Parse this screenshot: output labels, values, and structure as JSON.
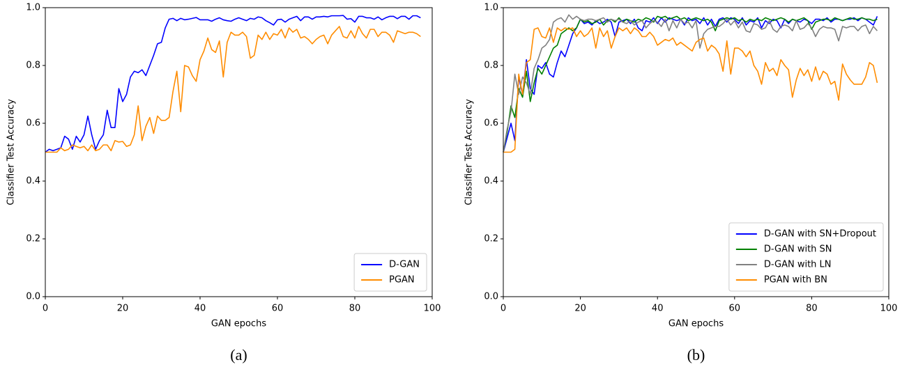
{
  "chart_data": [
    {
      "type": "line",
      "caption": "(a)",
      "xlabel": "GAN epochs",
      "ylabel": "Classifier Test Accuracy",
      "xlim": [
        0,
        100
      ],
      "xticks": [
        0,
        20,
        40,
        60,
        80,
        100
      ],
      "ylim": [
        0,
        1
      ],
      "yticks": [
        {
          "value": 0,
          "label": "0.0"
        },
        0.2,
        0.4,
        0.6,
        0.8,
        {
          "value": 1,
          "label": "1.0"
        }
      ],
      "legend": "lower right",
      "x": [
        0,
        1,
        2,
        3,
        4,
        5,
        6,
        7,
        8,
        9,
        10,
        11,
        12,
        13,
        14,
        15,
        16,
        17,
        18,
        19,
        20,
        21,
        22,
        23,
        24,
        25,
        26,
        27,
        28,
        29,
        30,
        31,
        32,
        33,
        34,
        35,
        36,
        37,
        38,
        39,
        40,
        41,
        42,
        43,
        44,
        45,
        46,
        47,
        48,
        49,
        50,
        51,
        52,
        53,
        54,
        55,
        56,
        57,
        58,
        59,
        60,
        61,
        62,
        63,
        64,
        65,
        66,
        67,
        68,
        69,
        70,
        71,
        72,
        73,
        74,
        75,
        76,
        77,
        78,
        79,
        80,
        81,
        82,
        83,
        84,
        85,
        86,
        87,
        88,
        89,
        90,
        91,
        92,
        93,
        94,
        95,
        96,
        97
      ],
      "series": [
        {
          "name": "D-GAN",
          "color": "#0000ff",
          "values": [
            0.5,
            0.51,
            0.505,
            0.51,
            0.515,
            0.555,
            0.545,
            0.51,
            0.555,
            0.535,
            0.56,
            0.625,
            0.56,
            0.51,
            0.54,
            0.56,
            0.645,
            0.585,
            0.585,
            0.72,
            0.675,
            0.7,
            0.76,
            0.78,
            0.775,
            0.785,
            0.765,
            0.8,
            0.835,
            0.875,
            0.88,
            0.93,
            0.96,
            0.963,
            0.955,
            0.963,
            0.958,
            0.96,
            0.963,
            0.966,
            0.958,
            0.958,
            0.958,
            0.953,
            0.96,
            0.965,
            0.958,
            0.955,
            0.953,
            0.96,
            0.965,
            0.96,
            0.955,
            0.963,
            0.96,
            0.968,
            0.965,
            0.955,
            0.948,
            0.94,
            0.958,
            0.96,
            0.95,
            0.96,
            0.965,
            0.97,
            0.955,
            0.968,
            0.968,
            0.96,
            0.968,
            0.968,
            0.97,
            0.968,
            0.972,
            0.972,
            0.972,
            0.973,
            0.96,
            0.962,
            0.95,
            0.97,
            0.97,
            0.965,
            0.965,
            0.96,
            0.968,
            0.958,
            0.965,
            0.97,
            0.97,
            0.962,
            0.97,
            0.97,
            0.96,
            0.972,
            0.972,
            0.965
          ]
        },
        {
          "name": "PGAN",
          "color": "#ff8c00",
          "values": [
            0.5,
            0.5,
            0.5,
            0.5,
            0.515,
            0.505,
            0.51,
            0.525,
            0.52,
            0.515,
            0.52,
            0.505,
            0.525,
            0.505,
            0.51,
            0.525,
            0.525,
            0.505,
            0.54,
            0.535,
            0.537,
            0.52,
            0.525,
            0.56,
            0.66,
            0.54,
            0.59,
            0.62,
            0.565,
            0.625,
            0.61,
            0.61,
            0.62,
            0.71,
            0.78,
            0.64,
            0.8,
            0.795,
            0.765,
            0.745,
            0.82,
            0.85,
            0.895,
            0.855,
            0.845,
            0.885,
            0.76,
            0.88,
            0.915,
            0.905,
            0.905,
            0.915,
            0.9,
            0.825,
            0.835,
            0.905,
            0.89,
            0.915,
            0.89,
            0.91,
            0.905,
            0.925,
            0.895,
            0.93,
            0.915,
            0.925,
            0.895,
            0.9,
            0.89,
            0.875,
            0.89,
            0.9,
            0.905,
            0.875,
            0.905,
            0.92,
            0.935,
            0.9,
            0.895,
            0.92,
            0.895,
            0.935,
            0.91,
            0.895,
            0.925,
            0.925,
            0.9,
            0.915,
            0.915,
            0.905,
            0.88,
            0.92,
            0.915,
            0.91,
            0.915,
            0.915,
            0.91,
            0.9
          ]
        }
      ]
    },
    {
      "type": "line",
      "caption": "(b)",
      "xlabel": "GAN epochs",
      "ylabel": "Classifier Test Accuracy",
      "xlim": [
        0,
        100
      ],
      "xticks": [
        0,
        20,
        40,
        60,
        80,
        100
      ],
      "ylim": [
        0,
        1
      ],
      "yticks": [
        {
          "value": 0,
          "label": "0.0"
        },
        0.2,
        0.4,
        0.6,
        0.8,
        {
          "value": 1,
          "label": "1.0"
        }
      ],
      "legend": "lower right",
      "x": [
        0,
        1,
        2,
        3,
        4,
        5,
        6,
        7,
        8,
        9,
        10,
        11,
        12,
        13,
        14,
        15,
        16,
        17,
        18,
        19,
        20,
        21,
        22,
        23,
        24,
        25,
        26,
        27,
        28,
        29,
        30,
        31,
        32,
        33,
        34,
        35,
        36,
        37,
        38,
        39,
        40,
        41,
        42,
        43,
        44,
        45,
        46,
        47,
        48,
        49,
        50,
        51,
        52,
        53,
        54,
        55,
        56,
        57,
        58,
        59,
        60,
        61,
        62,
        63,
        64,
        65,
        66,
        67,
        68,
        69,
        70,
        71,
        72,
        73,
        74,
        75,
        76,
        77,
        78,
        79,
        80,
        81,
        82,
        83,
        84,
        85,
        86,
        87,
        88,
        89,
        90,
        91,
        92,
        93,
        94,
        95,
        96,
        97
      ],
      "series": [
        {
          "name": "D-GAN with SN+Dropout",
          "color": "#0000ff",
          "values": [
            0.5,
            0.55,
            0.6,
            0.54,
            0.76,
            0.7,
            0.82,
            0.72,
            0.7,
            0.8,
            0.79,
            0.81,
            0.77,
            0.76,
            0.81,
            0.85,
            0.83,
            0.87,
            0.91,
            0.93,
            0.96,
            0.945,
            0.95,
            0.94,
            0.955,
            0.945,
            0.95,
            0.96,
            0.95,
            0.9,
            0.95,
            0.955,
            0.96,
            0.945,
            0.96,
            0.93,
            0.92,
            0.955,
            0.95,
            0.965,
            0.945,
            0.965,
            0.95,
            0.965,
            0.96,
            0.955,
            0.96,
            0.94,
            0.965,
            0.955,
            0.96,
            0.945,
            0.965,
            0.94,
            0.96,
            0.935,
            0.96,
            0.965,
            0.95,
            0.965,
            0.96,
            0.945,
            0.965,
            0.94,
            0.955,
            0.95,
            0.965,
            0.93,
            0.955,
            0.945,
            0.96,
            0.955,
            0.93,
            0.96,
            0.945,
            0.96,
            0.955,
            0.95,
            0.96,
            0.955,
            0.945,
            0.96,
            0.96,
            0.955,
            0.965,
            0.95,
            0.96,
            0.96,
            0.955,
            0.96,
            0.96,
            0.965,
            0.955,
            0.965,
            0.96,
            0.95,
            0.94,
            0.97
          ]
        },
        {
          "name": "D-GAN with SN",
          "color": "#008000",
          "values": [
            0.5,
            0.57,
            0.66,
            0.62,
            0.72,
            0.69,
            0.78,
            0.675,
            0.74,
            0.79,
            0.77,
            0.8,
            0.83,
            0.86,
            0.87,
            0.91,
            0.92,
            0.93,
            0.92,
            0.93,
            0.96,
            0.95,
            0.955,
            0.945,
            0.95,
            0.96,
            0.94,
            0.955,
            0.96,
            0.95,
            0.965,
            0.95,
            0.96,
            0.955,
            0.95,
            0.96,
            0.955,
            0.965,
            0.96,
            0.95,
            0.97,
            0.965,
            0.97,
            0.96,
            0.965,
            0.97,
            0.96,
            0.965,
            0.955,
            0.96,
            0.965,
            0.96,
            0.955,
            0.96,
            0.95,
            0.92,
            0.955,
            0.96,
            0.965,
            0.96,
            0.965,
            0.955,
            0.96,
            0.95,
            0.96,
            0.955,
            0.96,
            0.955,
            0.965,
            0.96,
            0.955,
            0.96,
            0.965,
            0.96,
            0.95,
            0.96,
            0.955,
            0.96,
            0.965,
            0.955,
            0.925,
            0.95,
            0.955,
            0.96,
            0.96,
            0.955,
            0.965,
            0.96,
            0.955,
            0.96,
            0.965,
            0.96,
            0.96,
            0.965,
            0.96,
            0.96,
            0.955,
            0.96
          ]
        },
        {
          "name": "D-GAN with LN",
          "color": "#808080",
          "values": [
            0.5,
            0.58,
            0.64,
            0.77,
            0.7,
            0.76,
            0.74,
            0.7,
            0.79,
            0.82,
            0.86,
            0.87,
            0.89,
            0.95,
            0.96,
            0.965,
            0.95,
            0.975,
            0.96,
            0.97,
            0.96,
            0.955,
            0.96,
            0.96,
            0.955,
            0.96,
            0.965,
            0.95,
            0.96,
            0.955,
            0.96,
            0.95,
            0.945,
            0.955,
            0.94,
            0.95,
            0.955,
            0.93,
            0.945,
            0.955,
            0.95,
            0.935,
            0.96,
            0.92,
            0.955,
            0.93,
            0.96,
            0.945,
            0.95,
            0.93,
            0.955,
            0.86,
            0.91,
            0.925,
            0.93,
            0.935,
            0.935,
            0.945,
            0.96,
            0.94,
            0.955,
            0.93,
            0.95,
            0.92,
            0.915,
            0.945,
            0.94,
            0.925,
            0.93,
            0.955,
            0.925,
            0.915,
            0.935,
            0.94,
            0.935,
            0.92,
            0.955,
            0.925,
            0.93,
            0.945,
            0.93,
            0.9,
            0.925,
            0.935,
            0.93,
            0.93,
            0.925,
            0.885,
            0.935,
            0.93,
            0.935,
            0.935,
            0.92,
            0.935,
            0.94,
            0.91,
            0.935,
            0.92
          ]
        },
        {
          "name": "PGAN with BN",
          "color": "#ff8c00",
          "values": [
            0.5,
            0.5,
            0.5,
            0.51,
            0.77,
            0.7,
            0.81,
            0.82,
            0.925,
            0.93,
            0.9,
            0.895,
            0.93,
            0.88,
            0.93,
            0.92,
            0.93,
            0.925,
            0.93,
            0.9,
            0.92,
            0.9,
            0.91,
            0.93,
            0.86,
            0.93,
            0.9,
            0.92,
            0.86,
            0.9,
            0.93,
            0.92,
            0.93,
            0.91,
            0.93,
            0.92,
            0.9,
            0.9,
            0.915,
            0.9,
            0.87,
            0.88,
            0.89,
            0.885,
            0.895,
            0.87,
            0.88,
            0.87,
            0.86,
            0.85,
            0.88,
            0.89,
            0.895,
            0.85,
            0.87,
            0.86,
            0.84,
            0.78,
            0.885,
            0.77,
            0.86,
            0.86,
            0.85,
            0.83,
            0.85,
            0.8,
            0.78,
            0.735,
            0.81,
            0.78,
            0.79,
            0.765,
            0.82,
            0.8,
            0.785,
            0.69,
            0.75,
            0.79,
            0.765,
            0.785,
            0.745,
            0.795,
            0.75,
            0.78,
            0.77,
            0.735,
            0.745,
            0.68,
            0.805,
            0.77,
            0.75,
            0.735,
            0.735,
            0.735,
            0.76,
            0.81,
            0.8,
            0.74
          ]
        }
      ]
    }
  ]
}
